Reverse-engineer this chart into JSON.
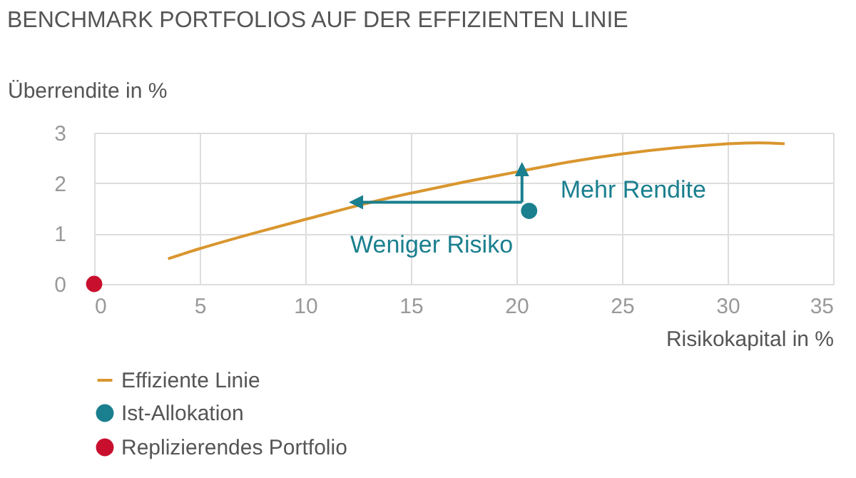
{
  "chart_data": {
    "type": "line",
    "title": "BENCHMARK PORTFOLIOS AUF DER EFFIZIENTEN LINIE",
    "xlabel": "Risikokapital in %",
    "ylabel": "Überrendite in %",
    "xlim": [
      0,
      35
    ],
    "xticks": [
      0,
      5,
      10,
      15,
      20,
      25,
      30,
      35
    ],
    "ylim": [
      0,
      3
    ],
    "yticks": [
      0,
      1,
      2,
      3
    ],
    "grid": true,
    "legend": "bottom left",
    "series": [
      {
        "name": "Effiziente Linie",
        "color": "#d9962e",
        "x": [
          3.5,
          5,
          7.5,
          10,
          13.5,
          15,
          17.5,
          20,
          22.5,
          25,
          27.5,
          30,
          31.5,
          32.7
        ],
        "values": [
          0.5,
          0.7,
          1.0,
          1.28,
          1.66,
          1.8,
          2.02,
          2.22,
          2.42,
          2.58,
          2.7,
          2.78,
          2.8,
          2.78
        ]
      },
      {
        "name": "Ist-Allokation",
        "type": "scatter",
        "color": "#1a7f8e",
        "x": [
          20.6
        ],
        "values": [
          1.45
        ]
      },
      {
        "name": "Replizierendes Portfolio",
        "type": "scatter",
        "color": "#c8102e",
        "x": [
          0
        ],
        "values": [
          0
        ]
      }
    ],
    "annotations": [
      {
        "text": "Mehr Rendite",
        "x": 20.6,
        "y": 2.25
      },
      {
        "text": "Weniger Risiko",
        "x": 12.4,
        "y": 1.45
      }
    ]
  }
}
